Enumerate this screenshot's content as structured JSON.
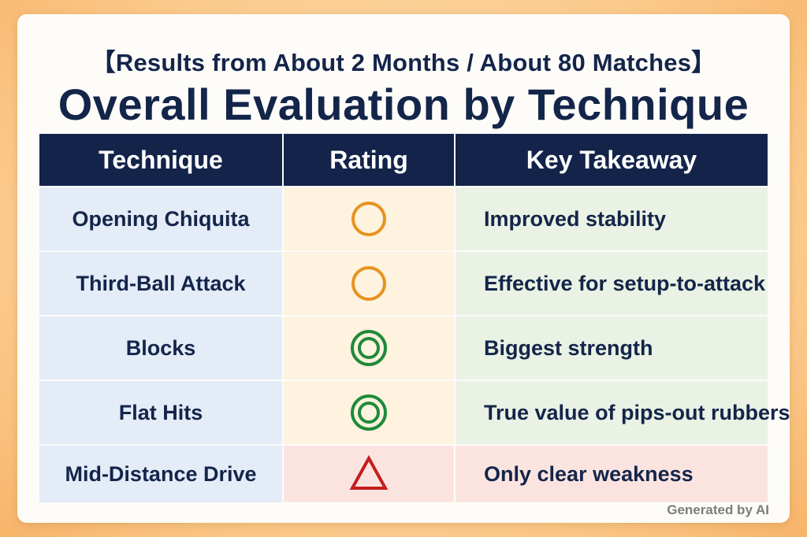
{
  "subtitle": "【Results from About 2 Months / About 80 Matches】",
  "title": "Overall Evaluation by Technique",
  "table": {
    "headers": [
      "Technique",
      "Rating",
      "Key Takeaway"
    ],
    "rows": [
      {
        "technique": "Opening Chiquita",
        "rating": "circle",
        "takeaway": "Improved stability"
      },
      {
        "technique": "Third-Ball Attack",
        "rating": "circle",
        "takeaway": "Effective for setup-to-attack"
      },
      {
        "technique": "Blocks",
        "rating": "double-circle",
        "takeaway": "Biggest strength"
      },
      {
        "technique": "Flat Hits",
        "rating": "double-circle",
        "takeaway": "True value of pips-out rubbers"
      },
      {
        "technique": "Mid-Distance Drive",
        "rating": "triangle",
        "takeaway": "Only clear weakness"
      }
    ]
  },
  "footer": "Generated by AI",
  "colors": {
    "header_bg": "#13234a",
    "circle": "#e8921f",
    "double_circle": "#1f8a3a",
    "triangle": "#c41e1e"
  }
}
